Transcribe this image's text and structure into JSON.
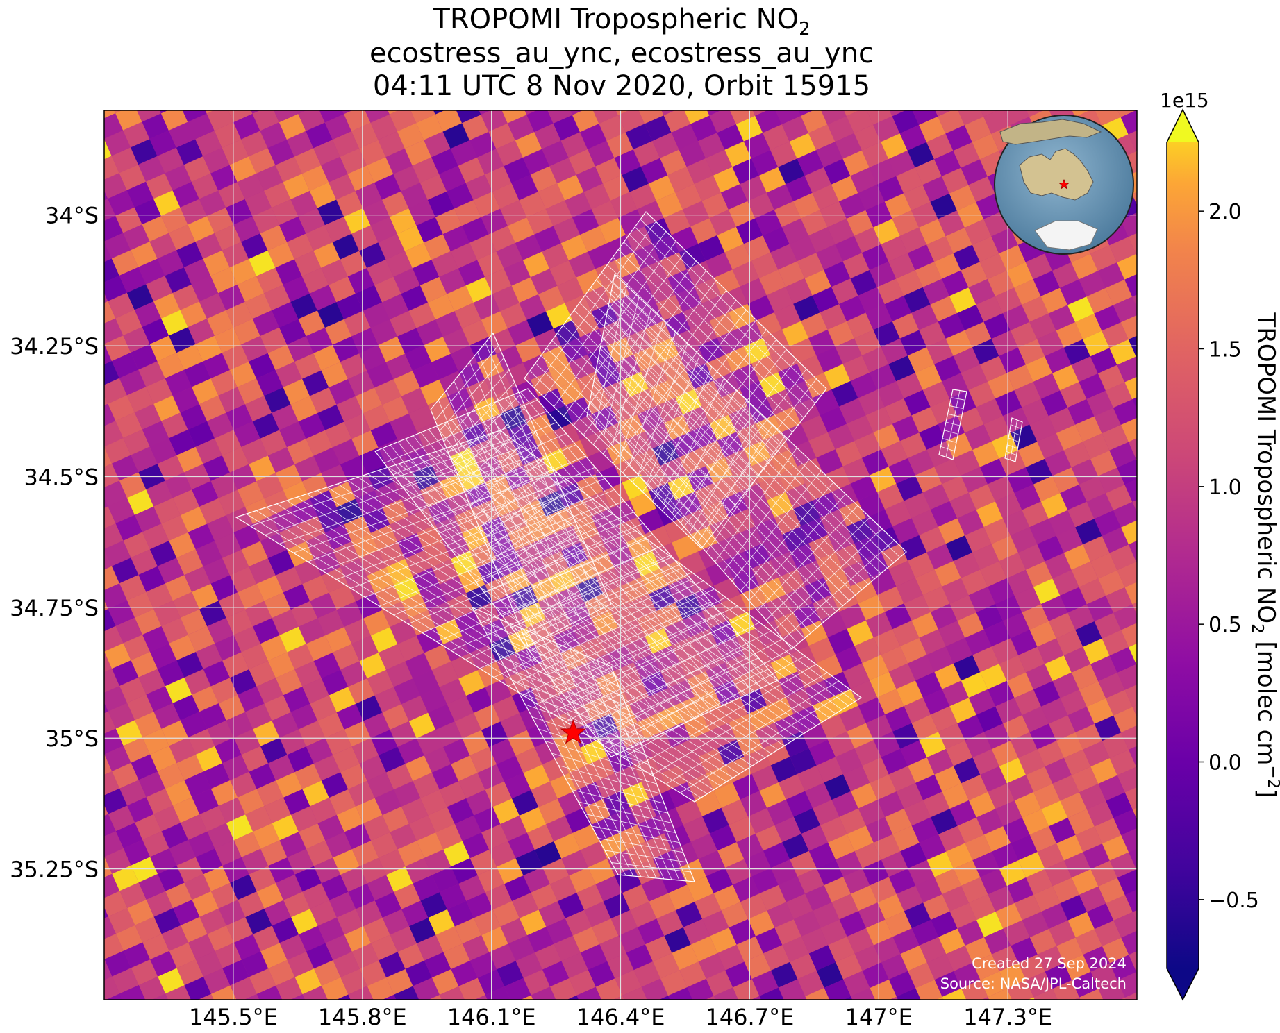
{
  "title": {
    "line1_main": "TROPOMI Tropospheric NO",
    "line1_sub": "2",
    "line2": "ecostress_au_ync, ecostress_au_ync",
    "line3": "04:11 UTC 8 Nov 2020, Orbit 15915"
  },
  "axes": {
    "x_ticks": [
      "145.5°E",
      "145.8°E",
      "146.1°E",
      "146.4°E",
      "146.7°E",
      "147°E",
      "147.3°E"
    ],
    "y_ticks": [
      "34°S",
      "34.25°S",
      "34.5°S",
      "34.75°S",
      "35°S",
      "35.25°S"
    ],
    "lon_range": [
      145.2,
      147.6
    ],
    "lat_range": [
      -35.5,
      -33.8
    ]
  },
  "colorbar": {
    "label_main": "TROPOMI Tropospheric NO",
    "label_sub": "2",
    "label_units": " [molec cm",
    "label_exp": "−2",
    "label_close": "]",
    "exponent": "1e15",
    "ticks": [
      "2.0",
      "1.5",
      "1.0",
      "0.5",
      "0.0",
      "−0.5"
    ],
    "tick_values": [
      2.0,
      1.5,
      1.0,
      0.5,
      0.0,
      -0.5
    ],
    "range": [
      -0.75,
      2.25
    ],
    "extend": "both",
    "colormap": "plasma"
  },
  "map_markers": {
    "site": {
      "lon": 146.29,
      "lat": -34.99,
      "symbol": "star",
      "color": "#ff0000"
    }
  },
  "inset": {
    "content": "globe",
    "region": "Australia"
  },
  "credits": {
    "created": "Created 27 Sep 2024",
    "source": "Source: NASA/JPL-Caltech"
  },
  "colors": {
    "grid": "#d9d9d9",
    "overlay_outline": "#ffffff",
    "ocean": "#5a86a8",
    "land": "#c9b98d",
    "star": "#ff0000"
  }
}
